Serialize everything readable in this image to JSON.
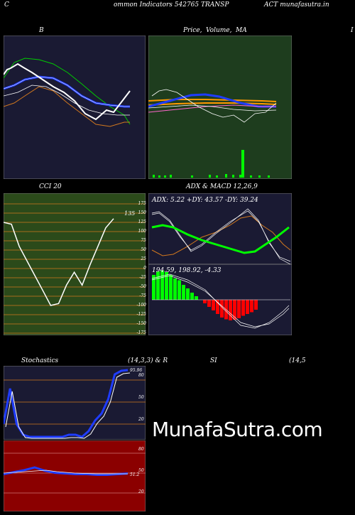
{
  "header": {
    "c_label": "C",
    "title_left": "ommon  Indicators 542765 TRANSP",
    "title_right": "ACT munafasutra.in"
  },
  "panels": {
    "bb": {
      "title": "B"
    },
    "price": {
      "title_a": "Price,",
      "title_b": "Volume,",
      "title_c": "MA"
    },
    "right_edge": "I",
    "cci": {
      "title": "CCI 20",
      "value_label": "135",
      "ticks": [
        "175",
        "150",
        "125",
        "100",
        "75",
        "50",
        "25",
        "0",
        "-25",
        "-50",
        "-75",
        "-100",
        "-125",
        "-150",
        "-175"
      ]
    },
    "adx": {
      "title": "ADX  & MACD 12,26,9",
      "readout": "ADX: 5.22  +DY: 43.57 -DY: 39.24",
      "macd_readout": "194.59,  198.92,  -4.33"
    },
    "stoch": {
      "title_left": "Stochastics",
      "title_mid": "(14,3,3) & R",
      "title_si": "SI",
      "title_right": "(14,5",
      "ticks": [
        "80",
        "50",
        "20"
      ],
      "value_label": "95.96"
    },
    "rsi": {
      "ticks": [
        "80",
        "50",
        "20"
      ],
      "value_label": "51.2"
    }
  },
  "watermark": "MunafaSutra.com",
  "colors": {
    "bb_bg": "#1a1a33",
    "price_bg": "#1e3d1e",
    "cci_bg": "#2b4a1a",
    "adx_bg": "#1a1a33",
    "stoch_bg": "#1a1a33",
    "rsi_bg": "#8b0000",
    "accent_blue": "#1f3cff",
    "accent_green": "#00ff00",
    "accent_orange": "#d2781e",
    "accent_red": "#ff0000"
  },
  "chart_data": [
    {
      "type": "line",
      "title": "B",
      "series": [
        {
          "values": [
            150,
            155,
            157,
            158,
            156,
            152,
            147,
            140,
            132,
            126,
            122,
            125,
            130
          ]
        },
        {
          "values": [
            122,
            128,
            135,
            140,
            141,
            140,
            137,
            133,
            128,
            123,
            119,
            118,
            118
          ]
        },
        {
          "values": [
            100,
            105,
            112,
            120,
            126,
            129,
            128,
            124,
            117,
            110,
            104,
            102,
            104
          ]
        },
        {
          "values": [
            152,
            162,
            160,
            150,
            140,
            128,
            118,
            110,
            102,
            100,
            106,
            112,
            122
          ]
        }
      ]
    },
    {
      "type": "line",
      "title": "CCI 20",
      "ylim": [
        -175,
        175
      ],
      "series": [
        {
          "values": [
            125,
            120,
            60,
            20,
            -20,
            -60,
            -100,
            -95,
            -45,
            -10,
            -45,
            10,
            60,
            110,
            135
          ]
        }
      ]
    },
    {
      "type": "bar",
      "title": "MACD histogram",
      "values": [
        70,
        80,
        82,
        78,
        70,
        60,
        55,
        42,
        32,
        20,
        10,
        0,
        -10,
        -20,
        -30,
        -40,
        -50,
        -55,
        -58,
        -56,
        -52,
        -45,
        -40,
        -35,
        -28
      ]
    },
    {
      "type": "line",
      "title": "Stochastics",
      "ylim": [
        0,
        100
      ],
      "series": [
        {
          "values": [
            20,
            70,
            20,
            5,
            2,
            2,
            2,
            2,
            2,
            2,
            5,
            5,
            2,
            10,
            25,
            35,
            55,
            90,
            95,
            96
          ]
        }
      ]
    },
    {
      "type": "line",
      "title": "RSI",
      "ylim": [
        0,
        100
      ],
      "series": [
        {
          "values": [
            50,
            53,
            56,
            60,
            55,
            52,
            51,
            50,
            50,
            49,
            49,
            50,
            51
          ]
        }
      ]
    }
  ]
}
